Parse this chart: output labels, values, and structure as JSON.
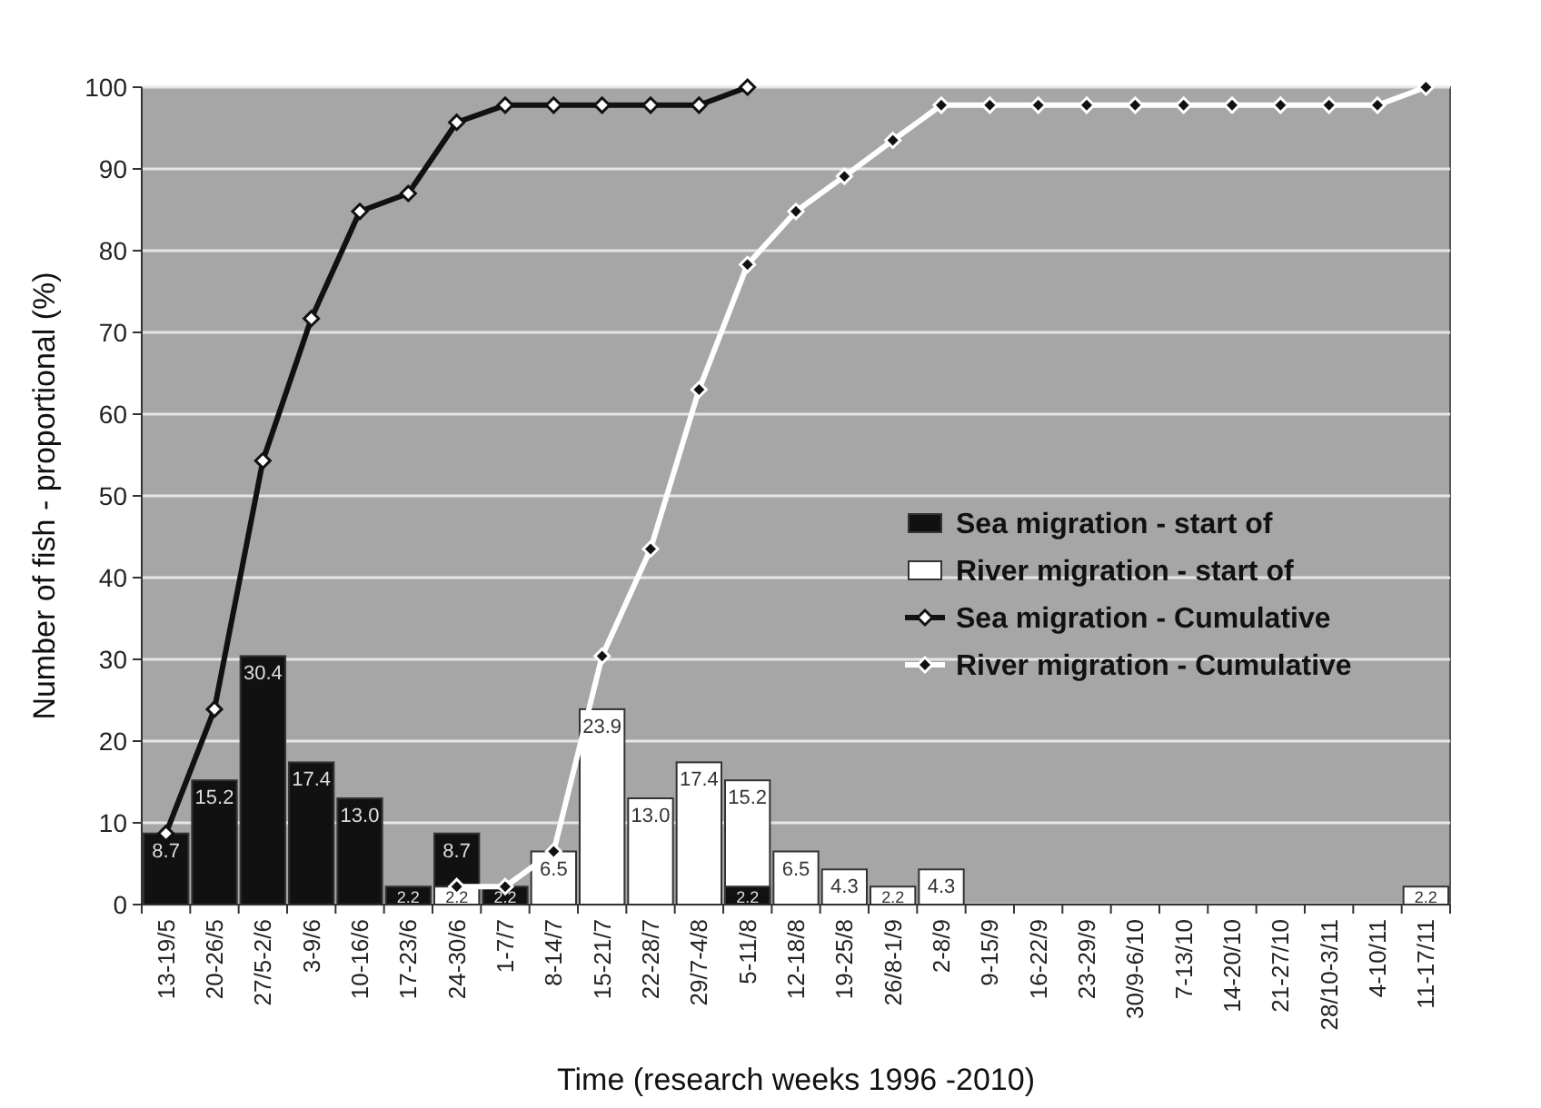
{
  "chart_data": {
    "type": "bar",
    "xlabel": "Time (research weeks 1996 -2010)",
    "ylabel": "Number of fish - proportional (%)",
    "categories": [
      "13-19/5",
      "20-26/5",
      "27/5-2/6",
      "3-9/6",
      "10-16/6",
      "17-23/6",
      "24-30/6",
      "1-7/7",
      "8-14/7",
      "15-21/7",
      "22-28/7",
      "29/7-4/8",
      "5-11/8",
      "12-18/8",
      "19-25/8",
      "26/8-1/9",
      "2-8/9",
      "9-15/9",
      "16-22/9",
      "23-29/9",
      "30/9-6/10",
      "7-13/10",
      "14-20/10",
      "21-27/10",
      "28/10-3/11",
      "4-10/11",
      "11-17/11"
    ],
    "ylim": [
      0,
      100
    ],
    "yticks": [
      0,
      10,
      20,
      30,
      40,
      50,
      60,
      70,
      80,
      90,
      100
    ],
    "grid": "y",
    "legend": "right",
    "series": [
      {
        "name": "Sea migration - start of",
        "color": "#111111",
        "values": [
          8.7,
          15.2,
          30.4,
          17.4,
          13.0,
          2.2,
          8.7,
          2.2,
          null,
          null,
          null,
          null,
          2.2,
          null,
          null,
          null,
          null,
          null,
          null,
          null,
          null,
          null,
          null,
          null,
          null,
          null,
          null
        ],
        "value_labels": [
          "8.7",
          "15.2",
          "30.4",
          "17.4",
          "13.0",
          "2.2",
          "8.7",
          "2.2",
          null,
          null,
          null,
          null,
          "2.2",
          null,
          null,
          null,
          null,
          null,
          null,
          null,
          null,
          null,
          null,
          null,
          null,
          null,
          null
        ]
      },
      {
        "name": "River migration - start of",
        "color": "#ffffff",
        "values": [
          null,
          null,
          null,
          null,
          null,
          null,
          2.2,
          null,
          6.5,
          23.9,
          13.0,
          17.4,
          15.2,
          6.5,
          4.3,
          2.2,
          4.3,
          null,
          null,
          null,
          null,
          null,
          null,
          null,
          null,
          null,
          2.2
        ],
        "value_labels": [
          null,
          null,
          null,
          null,
          null,
          null,
          "2.2",
          null,
          "6.5",
          "23.9",
          "13.0",
          "17.4",
          "15.2",
          "6.5",
          "4.3",
          "2.2",
          "4.3",
          null,
          null,
          null,
          null,
          null,
          null,
          null,
          null,
          null,
          "2.2"
        ]
      },
      {
        "name": "Sea migration - Cumulative",
        "type": "line",
        "marker": "diamond",
        "color": "#111111",
        "values": [
          8.7,
          23.9,
          54.3,
          71.7,
          84.8,
          87.0,
          95.7,
          97.8,
          97.8,
          97.8,
          97.8,
          97.8,
          100,
          null,
          null,
          null,
          null,
          null,
          null,
          null,
          null,
          null,
          null,
          null,
          null,
          null,
          null
        ]
      },
      {
        "name": "River migration - Cumulative",
        "type": "line",
        "marker": "diamond",
        "color": "#ffffff",
        "values": [
          null,
          null,
          null,
          null,
          null,
          null,
          2.2,
          2.2,
          6.5,
          30.4,
          43.5,
          63.0,
          78.3,
          84.8,
          89.1,
          93.5,
          97.8,
          97.8,
          97.8,
          97.8,
          97.8,
          97.8,
          97.8,
          97.8,
          97.8,
          97.8,
          100
        ]
      }
    ]
  }
}
